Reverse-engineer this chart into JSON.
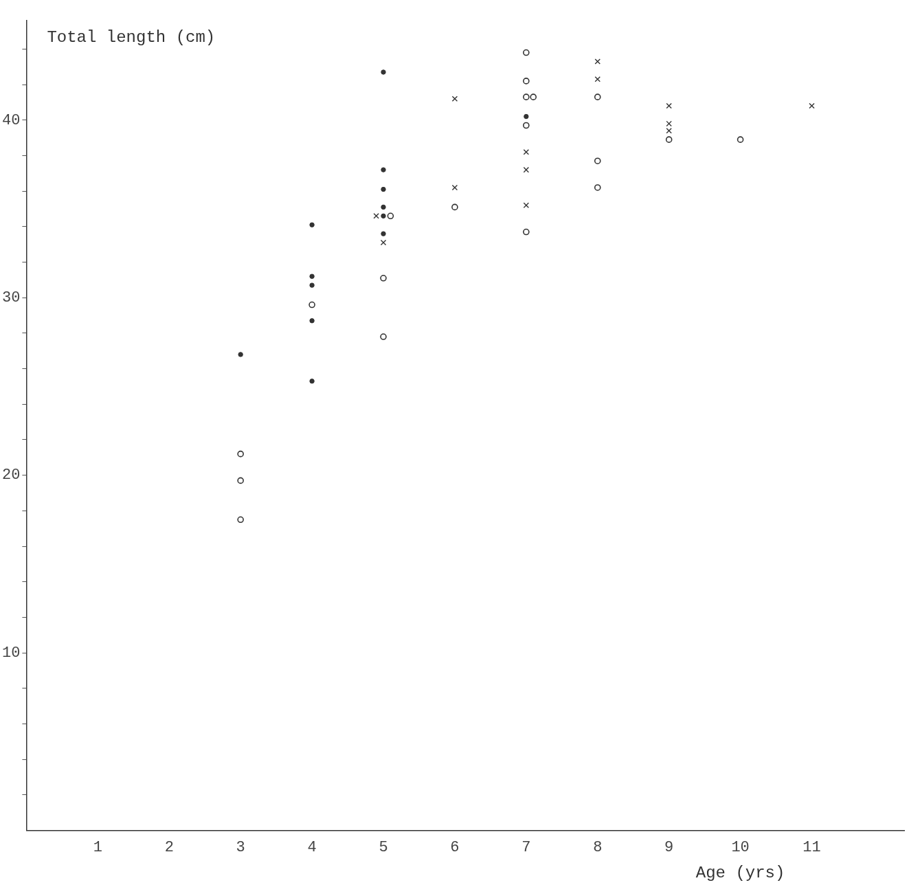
{
  "chart_data": {
    "type": "scatter",
    "xlabel": "Age (yrs)",
    "ylabel": "Total length (cm)",
    "xlim": [
      0,
      12.3
    ],
    "ylim": [
      0,
      45.6
    ],
    "xticks": [
      1,
      2,
      3,
      4,
      5,
      6,
      7,
      8,
      9,
      10,
      11
    ],
    "yticks": [
      {
        "value": 2,
        "label": null
      },
      {
        "value": 4,
        "label": null
      },
      {
        "value": 6,
        "label": null
      },
      {
        "value": 8,
        "label": null
      },
      10,
      {
        "value": 12,
        "label": null
      },
      {
        "value": 14,
        "label": null
      },
      {
        "value": 16,
        "label": null
      },
      {
        "value": 18,
        "label": null
      },
      20,
      {
        "value": 22,
        "label": null
      },
      {
        "value": 24,
        "label": null
      },
      {
        "value": 26,
        "label": null
      },
      {
        "value": 28,
        "label": null
      },
      30,
      {
        "value": 32,
        "label": null
      },
      {
        "value": 34,
        "label": null
      },
      {
        "value": 36,
        "label": null
      },
      {
        "value": 38,
        "label": null
      },
      40,
      {
        "value": 42,
        "label": null
      },
      {
        "value": 44,
        "label": null
      }
    ],
    "grid": false,
    "legend": false,
    "series": [
      {
        "color": "#333333",
        "x": [
          3,
          4,
          4,
          4,
          4,
          4,
          5,
          5,
          5,
          5,
          5,
          5,
          7
        ],
        "values": [
          26.8,
          34.1,
          31.2,
          30.7,
          28.7,
          25.3,
          42.7,
          37.2,
          36.1,
          35.1,
          34.6,
          33.6,
          40.2
        ]
      },
      {
        "color": "#333333",
        "marker": "circle",
        "x": [
          3,
          3,
          3,
          4,
          5.1,
          5,
          5,
          6,
          7,
          7,
          7,
          7.1,
          7,
          7,
          8,
          8,
          8,
          9,
          10
        ],
        "values": [
          21.2,
          19.7,
          17.5,
          29.6,
          34.6,
          31.1,
          27.8,
          35.1,
          43.8,
          42.2,
          41.3,
          41.3,
          39.7,
          33.7,
          41.3,
          37.7,
          36.2,
          38.9,
          38.9
        ]
      },
      {
        "color": "#333333",
        "marker": "cross",
        "x": [
          4.9,
          5,
          6,
          6,
          7,
          7,
          7,
          8,
          8,
          9,
          9,
          9,
          11
        ],
        "values": [
          34.6,
          33.1,
          41.2,
          36.2,
          38.2,
          37.2,
          35.2,
          43.3,
          42.3,
          40.8,
          39.8,
          39.4,
          40.8
        ]
      }
    ]
  }
}
